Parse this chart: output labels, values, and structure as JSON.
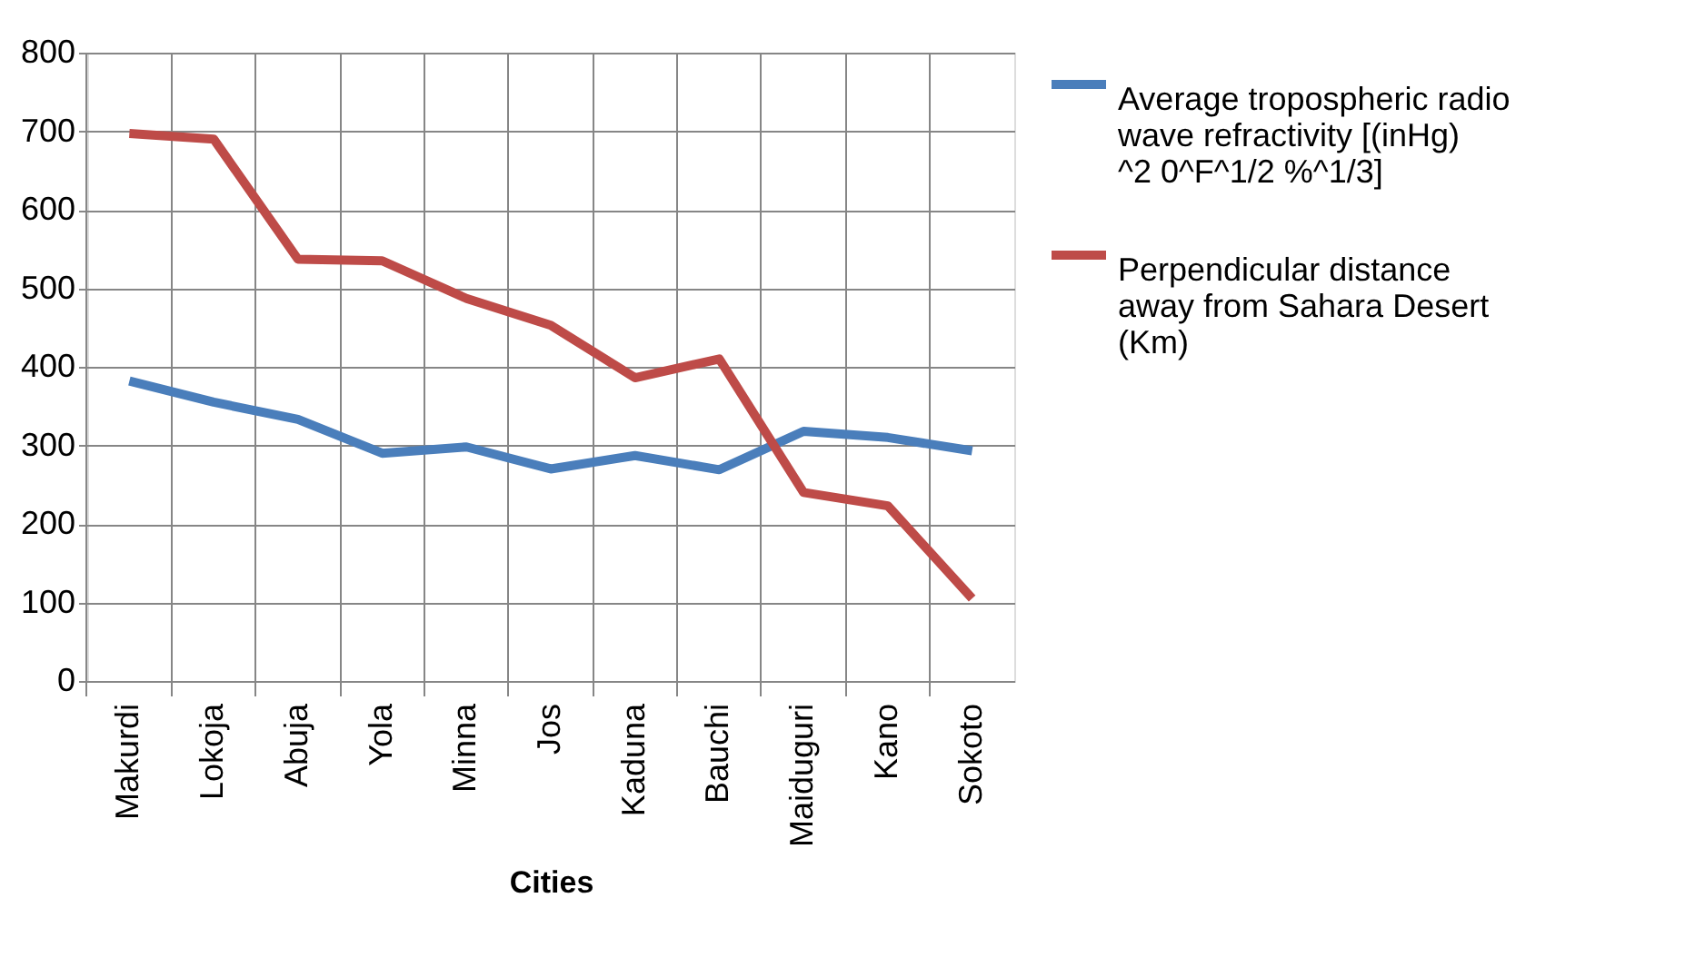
{
  "chart_data": {
    "type": "line",
    "xlabel": "Cities",
    "categories": [
      "Makurdi",
      "Lokoja",
      "Abuja",
      "Yola",
      "Minna",
      "Jos",
      "Kaduna",
      "Bauchi",
      "Maiduguri",
      "Kano",
      "Sokoto"
    ],
    "series": [
      {
        "name": "Average tropospheric radio wave refractivity [(inHg) ^2  0^F^1/2 %^1/3]",
        "color": "#4a7ebb",
        "values": [
          382,
          355,
          333,
          290,
          298,
          270,
          287,
          269,
          318,
          310,
          293
        ]
      },
      {
        "name": "Perpendicular distance away from Sahara Desert (Km)",
        "color": "#be4b48",
        "values": [
          697,
          690,
          537,
          535,
          487,
          453,
          386,
          410,
          240,
          223,
          105
        ]
      }
    ],
    "ylim": [
      0,
      800
    ],
    "yticks": [
      0,
      100,
      200,
      300,
      400,
      500,
      600,
      700,
      800
    ],
    "grid": true,
    "legend": "right",
    "marker": "none",
    "line_style": "solid"
  }
}
